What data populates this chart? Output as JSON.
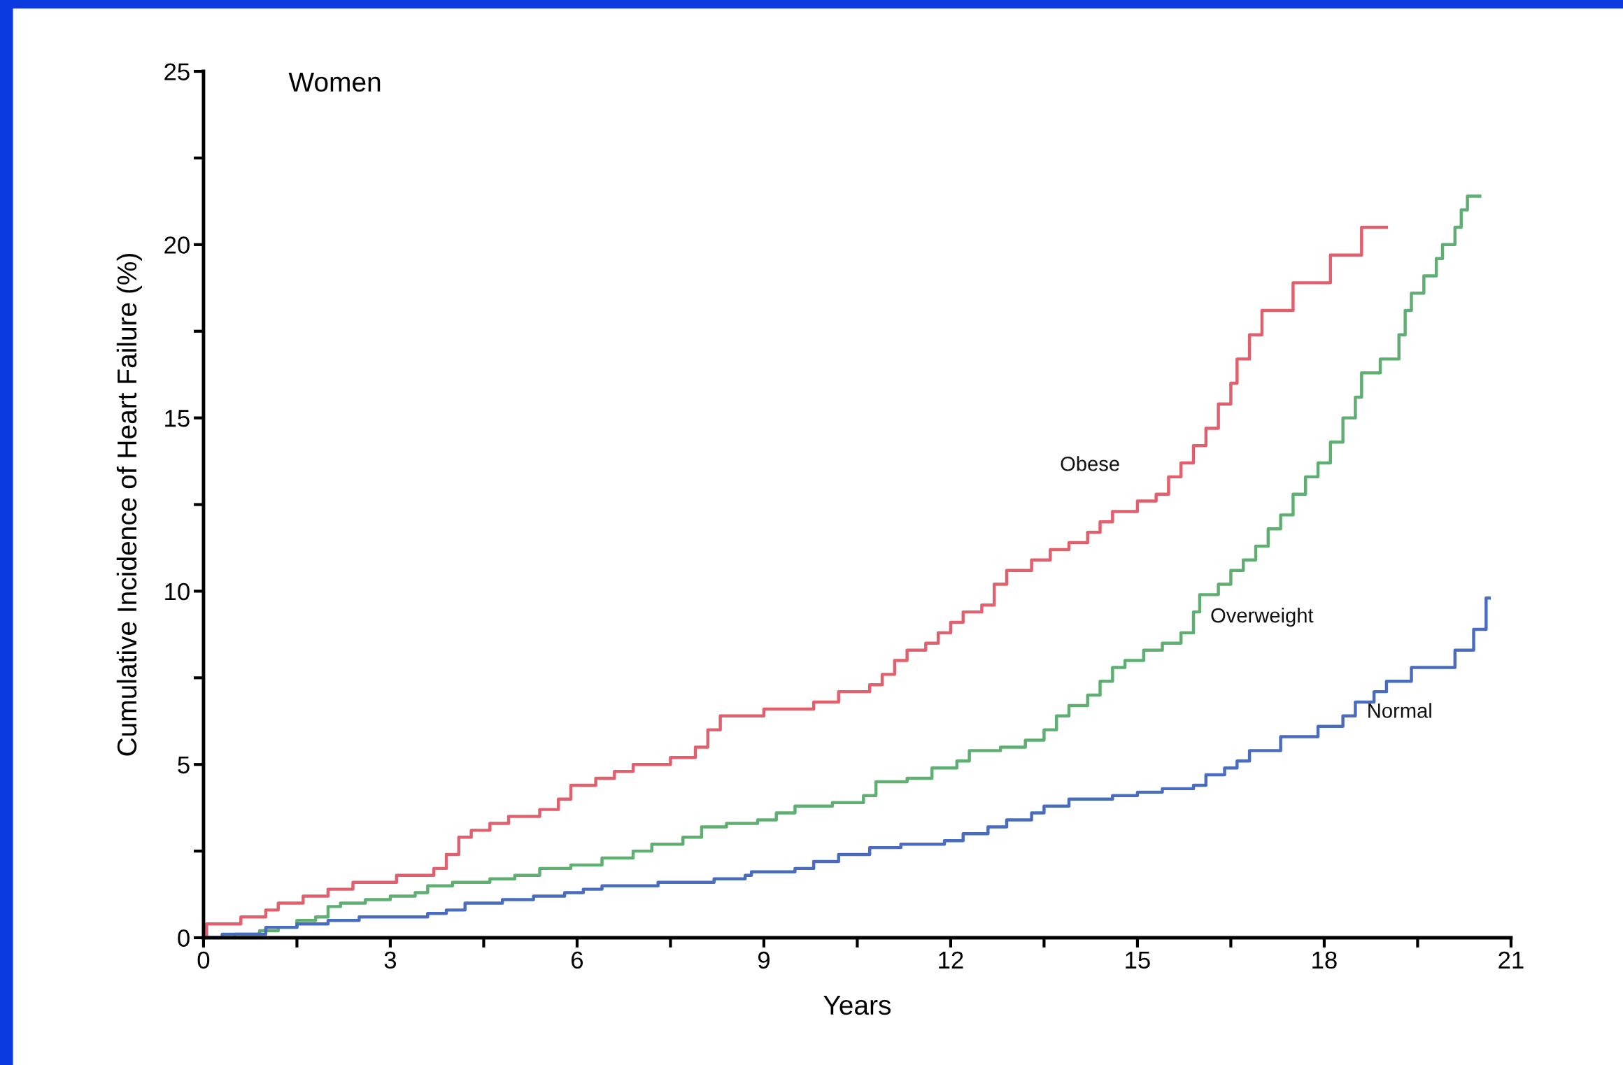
{
  "chart_data": {
    "type": "step",
    "xlabel": "Years",
    "ylabel": "Cumulative Incidence of Heart Failure (%)",
    "annotations": [
      "Women"
    ],
    "xlim": [
      0,
      21
    ],
    "ylim": [
      0,
      25
    ],
    "xticks": [
      0,
      {
        "value": 1.5,
        "label": null
      },
      3,
      {
        "value": 4.5,
        "label": null
      },
      6,
      {
        "value": 7.5,
        "label": null
      },
      9,
      {
        "value": 10.5,
        "label": null
      },
      12,
      {
        "value": 13.5,
        "label": null
      },
      15,
      {
        "value": 16.5,
        "label": null
      },
      18,
      {
        "value": 19.5,
        "label": null
      },
      21
    ],
    "yticks": [
      0,
      {
        "value": 2.5,
        "label": null
      },
      5,
      {
        "value": 7.5,
        "label": null
      },
      10,
      {
        "value": 12.5,
        "label": null
      },
      15,
      {
        "value": 17.5,
        "label": null
      },
      20,
      {
        "value": 22.5,
        "label": null
      },
      25
    ],
    "grid": false,
    "legend": false,
    "marker": "none",
    "line_style": "solid",
    "series": [
      {
        "name": "Obese",
        "color": "#e0606e",
        "x": [
          0,
          0.05,
          0.6,
          1.0,
          1.2,
          1.6,
          2.0,
          2.4,
          3.1,
          3.7,
          3.9,
          4.1,
          4.3,
          4.6,
          4.9,
          5.4,
          5.7,
          5.9,
          6.3,
          6.6,
          6.9,
          7.5,
          7.9,
          8.1,
          8.3,
          9.0,
          9.8,
          10.2,
          10.7,
          10.9,
          11.1,
          11.3,
          11.6,
          11.8,
          12.0,
          12.2,
          12.5,
          12.7,
          12.9,
          13.3,
          13.6,
          13.9,
          14.2,
          14.4,
          14.6,
          15.0,
          15.3,
          15.5,
          15.7,
          15.9,
          16.1,
          16.3,
          16.5,
          16.6,
          16.8,
          17.0,
          17.5,
          18.1,
          18.6,
          19.0
        ],
        "values": [
          0,
          0.4,
          0.6,
          0.8,
          1.0,
          1.2,
          1.4,
          1.6,
          1.8,
          2.0,
          2.4,
          2.9,
          3.1,
          3.3,
          3.5,
          3.7,
          4.0,
          4.4,
          4.6,
          4.8,
          5.0,
          5.2,
          5.5,
          6.0,
          6.4,
          6.6,
          6.8,
          7.1,
          7.3,
          7.6,
          8.0,
          8.3,
          8.5,
          8.8,
          9.1,
          9.4,
          9.6,
          10.2,
          10.6,
          10.9,
          11.2,
          11.4,
          11.7,
          12.0,
          12.3,
          12.6,
          12.8,
          13.3,
          13.7,
          14.2,
          14.7,
          15.4,
          16.0,
          16.7,
          17.4,
          18.1,
          18.9,
          19.7,
          20.5,
          20.5
        ]
      },
      {
        "name": "Overweight",
        "color": "#5fae72",
        "x": [
          0,
          0.5,
          0.9,
          1.2,
          1.5,
          1.8,
          2.0,
          2.2,
          2.6,
          3.0,
          3.4,
          3.6,
          4.0,
          4.6,
          5.0,
          5.4,
          5.9,
          6.4,
          6.9,
          7.2,
          7.7,
          8.0,
          8.4,
          8.9,
          9.2,
          9.5,
          10.1,
          10.6,
          10.8,
          11.3,
          11.7,
          12.1,
          12.3,
          12.8,
          13.2,
          13.5,
          13.7,
          13.9,
          14.2,
          14.4,
          14.6,
          14.8,
          15.1,
          15.4,
          15.7,
          15.9,
          16.0,
          16.3,
          16.5,
          16.7,
          16.9,
          17.1,
          17.3,
          17.5,
          17.7,
          17.9,
          18.1,
          18.3,
          18.5,
          18.6,
          18.9,
          19.2,
          19.3,
          19.4,
          19.6,
          19.8,
          19.9,
          20.1,
          20.2,
          20.3,
          20.5
        ],
        "values": [
          0,
          0.1,
          0.2,
          0.3,
          0.5,
          0.6,
          0.9,
          1.0,
          1.1,
          1.2,
          1.3,
          1.5,
          1.6,
          1.7,
          1.8,
          2.0,
          2.1,
          2.3,
          2.5,
          2.7,
          2.9,
          3.2,
          3.3,
          3.4,
          3.6,
          3.8,
          3.9,
          4.1,
          4.5,
          4.6,
          4.9,
          5.1,
          5.4,
          5.5,
          5.7,
          6.0,
          6.4,
          6.7,
          7.0,
          7.4,
          7.8,
          8.0,
          8.3,
          8.5,
          8.8,
          9.4,
          9.9,
          10.2,
          10.6,
          10.9,
          11.3,
          11.8,
          12.2,
          12.8,
          13.3,
          13.7,
          14.3,
          15.0,
          15.6,
          16.3,
          16.7,
          17.4,
          18.1,
          18.6,
          19.1,
          19.6,
          20.0,
          20.5,
          21.0,
          21.4,
          21.4
        ]
      },
      {
        "name": "Normal",
        "color": "#4a6cbf",
        "x": [
          0,
          0.3,
          1.0,
          1.5,
          2.0,
          2.5,
          3.6,
          3.9,
          4.2,
          4.8,
          5.3,
          5.8,
          6.1,
          6.4,
          7.3,
          8.2,
          8.7,
          8.8,
          9.5,
          9.8,
          10.2,
          10.7,
          11.2,
          11.9,
          12.2,
          12.6,
          12.9,
          13.3,
          13.5,
          13.9,
          14.6,
          15.0,
          15.4,
          15.9,
          16.1,
          16.4,
          16.6,
          16.8,
          17.3,
          17.9,
          18.3,
          18.5,
          18.8,
          19.0,
          19.4,
          20.1,
          20.4,
          20.6,
          20.65
        ],
        "values": [
          0,
          0.1,
          0.3,
          0.4,
          0.5,
          0.6,
          0.7,
          0.8,
          1.0,
          1.1,
          1.2,
          1.3,
          1.4,
          1.5,
          1.6,
          1.7,
          1.8,
          1.9,
          2.0,
          2.2,
          2.4,
          2.6,
          2.7,
          2.8,
          3.0,
          3.2,
          3.4,
          3.6,
          3.8,
          4.0,
          4.1,
          4.2,
          4.3,
          4.4,
          4.7,
          4.9,
          5.1,
          5.4,
          5.8,
          6.1,
          6.4,
          6.8,
          7.1,
          7.4,
          7.8,
          8.3,
          8.9,
          9.8,
          9.8
        ]
      }
    ]
  }
}
